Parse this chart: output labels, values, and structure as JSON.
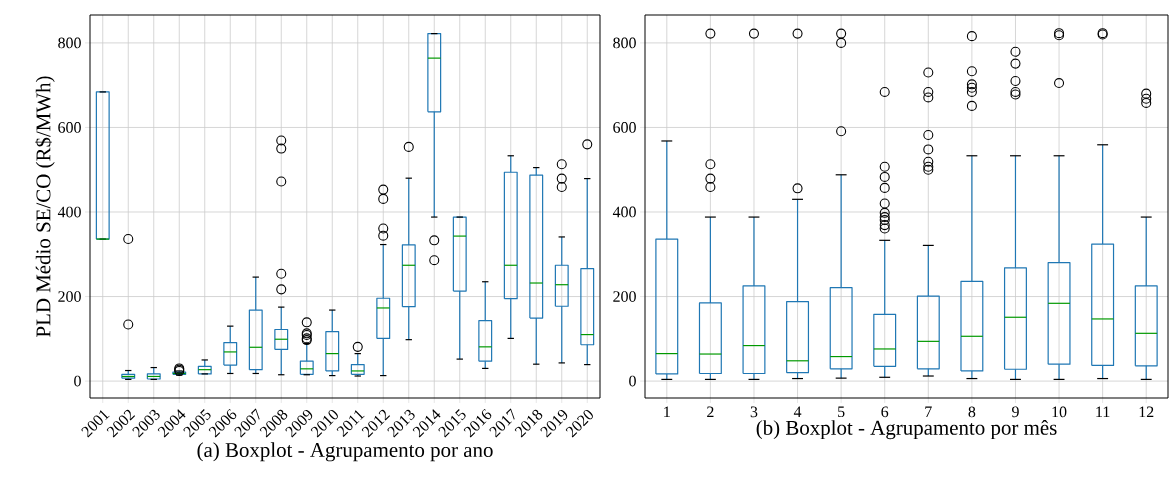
{
  "chart_data": [
    {
      "type": "box",
      "xlabel": "(a) Boxplot - Agrupamento por ano",
      "ylabel": "PLD Médio SE/CO (R$/MWh)",
      "categories": [
        "2001",
        "2002",
        "2003",
        "2004",
        "2005",
        "2006",
        "2007",
        "2008",
        "2009",
        "2010",
        "2011",
        "2012",
        "2013",
        "2014",
        "2015",
        "2016",
        "2017",
        "2018",
        "2019",
        "2020"
      ],
      "ylim": [
        -40,
        866
      ],
      "yticks": [
        0,
        200,
        400,
        600,
        800
      ],
      "grid": true,
      "marker": "circle",
      "series": [
        {
          "color": "#1f77b4",
          "boxes": [
            {
              "low": 336,
              "q1": 336,
              "median": 336,
              "q3": 684,
              "high": 684
            },
            {
              "low": 4,
              "q1": 7,
              "median": 11,
              "q3": 16,
              "high": 25,
              "outliers": [
                134,
                336
              ]
            },
            {
              "low": 4,
              "q1": 5,
              "median": 11,
              "q3": 17,
              "high": 32
            },
            {
              "low": 14,
              "q1": 16,
              "median": 18,
              "q3": 21,
              "high": 24,
              "outliers": [
                30,
                27,
                24
              ]
            },
            {
              "low": 17,
              "q1": 17,
              "median": 27,
              "q3": 35,
              "high": 50
            },
            {
              "low": 18,
              "q1": 38,
              "median": 69,
              "q3": 91,
              "high": 130
            },
            {
              "low": 18,
              "q1": 27,
              "median": 80,
              "q3": 168,
              "high": 246
            },
            {
              "low": 15,
              "q1": 75,
              "median": 99,
              "q3": 122,
              "high": 175,
              "outliers": [
                569,
                550,
                472,
                254,
                217
              ]
            },
            {
              "low": 15,
              "q1": 16,
              "median": 29,
              "q3": 47,
              "high": 89,
              "outliers": [
                139,
                113,
                109,
                101,
                97
              ]
            },
            {
              "low": 13,
              "q1": 24,
              "median": 65,
              "q3": 117,
              "high": 168
            },
            {
              "low": 12,
              "q1": 16,
              "median": 24,
              "q3": 39,
              "high": 65,
              "outliers": [
                81
              ]
            },
            {
              "low": 13,
              "q1": 101,
              "median": 173,
              "q3": 196,
              "high": 323,
              "outliers": [
                453,
                431,
                361,
                344
              ]
            },
            {
              "low": 98,
              "q1": 176,
              "median": 274,
              "q3": 322,
              "high": 480,
              "outliers": [
                554
              ]
            },
            {
              "low": 388,
              "q1": 637,
              "median": 764,
              "q3": 822,
              "high": 822,
              "outliers": [
                333,
                286
              ]
            },
            {
              "low": 52,
              "q1": 213,
              "median": 343,
              "q3": 388,
              "high": 388
            },
            {
              "low": 30,
              "q1": 47,
              "median": 81,
              "q3": 143,
              "high": 235
            },
            {
              "low": 101,
              "q1": 195,
              "median": 274,
              "q3": 494,
              "high": 533
            },
            {
              "low": 40,
              "q1": 149,
              "median": 232,
              "q3": 487,
              "high": 505
            },
            {
              "low": 43,
              "q1": 177,
              "median": 228,
              "q3": 274,
              "high": 341,
              "outliers": [
                513,
                479,
                459
              ]
            },
            {
              "low": 39,
              "q1": 86,
              "median": 110,
              "q3": 266,
              "high": 479,
              "outliers": [
                560
              ]
            }
          ]
        }
      ]
    },
    {
      "type": "box",
      "xlabel": "(b) Boxplot - Agrupamento por mês",
      "categories": [
        "1",
        "2",
        "3",
        "4",
        "5",
        "6",
        "7",
        "8",
        "9",
        "10",
        "11",
        "12"
      ],
      "ylim": [
        -40,
        866
      ],
      "yticks": [
        0,
        200,
        400,
        600,
        800
      ],
      "grid": true,
      "marker": "circle",
      "series": [
        {
          "color": "#1f77b4",
          "boxes": [
            {
              "low": 4,
              "q1": 17,
              "median": 65,
              "q3": 336,
              "high": 568
            },
            {
              "low": 4,
              "q1": 18,
              "median": 64,
              "q3": 185,
              "high": 388,
              "outliers": [
                822,
                513,
                479,
                459
              ]
            },
            {
              "low": 4,
              "q1": 18,
              "median": 84,
              "q3": 225,
              "high": 388,
              "outliers": [
                822
              ]
            },
            {
              "low": 6,
              "q1": 20,
              "median": 48,
              "q3": 188,
              "high": 430,
              "outliers": [
                822,
                456
              ]
            },
            {
              "low": 7,
              "q1": 29,
              "median": 58,
              "q3": 221,
              "high": 488,
              "outliers": [
                822,
                800,
                591
              ]
            },
            {
              "low": 9,
              "q1": 35,
              "median": 76,
              "q3": 158,
              "high": 333,
              "outliers": [
                684,
                507,
                483,
                457,
                420,
                398,
                388,
                381,
                369,
                361
              ]
            },
            {
              "low": 12,
              "q1": 29,
              "median": 94,
              "q3": 201,
              "high": 321,
              "outliers": [
                730,
                684,
                671,
                582,
                548,
                519,
                507,
                500
              ]
            },
            {
              "low": 6,
              "q1": 24,
              "median": 106,
              "q3": 236,
              "high": 533,
              "outliers": [
                816,
                733,
                702,
                694,
                684,
                651
              ]
            },
            {
              "low": 4,
              "q1": 28,
              "median": 151,
              "q3": 268,
              "high": 533,
              "outliers": [
                779,
                751,
                710,
                684,
                678
              ]
            },
            {
              "low": 4,
              "q1": 40,
              "median": 184,
              "q3": 280,
              "high": 533,
              "outliers": [
                823,
                818,
                705
              ]
            },
            {
              "low": 6,
              "q1": 37,
              "median": 147,
              "q3": 324,
              "high": 559,
              "outliers": [
                823,
                820
              ]
            },
            {
              "low": 4,
              "q1": 36,
              "median": 113,
              "q3": 225,
              "high": 388,
              "outliers": [
                680,
                668,
                658
              ]
            }
          ]
        }
      ]
    }
  ]
}
